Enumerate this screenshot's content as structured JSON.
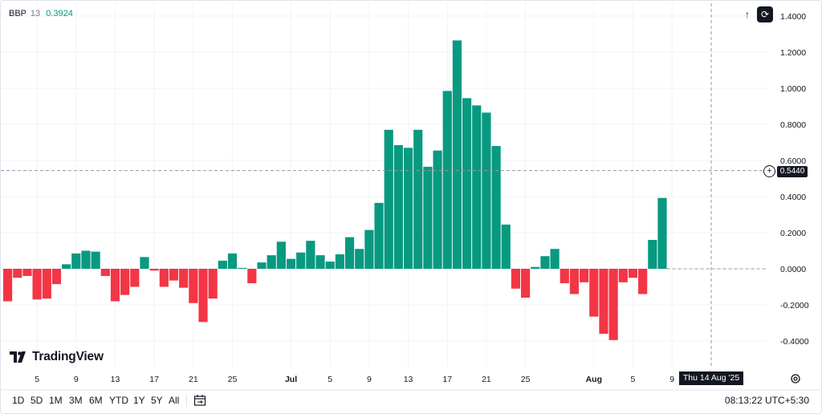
{
  "indicator": {
    "name": "BBP",
    "length": "13",
    "value": "0.3924"
  },
  "toolbar": {
    "arrow_label": "↑",
    "reset_label": "⟳"
  },
  "logo": {
    "text": "TradingView"
  },
  "crosshair": {
    "date_label": "Thu 14 Aug '25",
    "price_label": "0.5440"
  },
  "ranges": [
    "1D",
    "5D",
    "1M",
    "3M",
    "6M",
    "YTD",
    "1Y",
    "5Y",
    "All"
  ],
  "clock": "08:13:22 UTC+5:30",
  "colors": {
    "positive": "#089981",
    "negative": "#f23645",
    "grid": "#f0f3fa",
    "text": "#131722"
  },
  "chart_data": {
    "type": "bar",
    "title": "",
    "xlabel": "",
    "ylabel": "",
    "ylim": [
      -0.5,
      1.4
    ],
    "y_ticks": [
      "1.4000",
      "1.2000",
      "1.0000",
      "0.8000",
      "0.6000",
      "0.4000",
      "0.2000",
      "0.0000",
      "-0.2000",
      "-0.4000"
    ],
    "y_tick_values": [
      1.4,
      1.2,
      1.0,
      0.8,
      0.6,
      0.4,
      0.2,
      0.0,
      -0.2,
      -0.4
    ],
    "x_ticks": [
      "5",
      "9",
      "13",
      "17",
      "21",
      "25",
      "Jul",
      "5",
      "9",
      "13",
      "17",
      "21",
      "25",
      "Aug",
      "5",
      "9"
    ],
    "x_tick_bar_index": [
      3,
      7,
      11,
      15,
      19,
      23,
      29,
      33,
      37,
      41,
      45,
      49,
      53,
      60,
      64,
      68
    ],
    "values": [
      -0.18,
      -0.05,
      -0.04,
      -0.17,
      -0.165,
      -0.085,
      0.025,
      0.085,
      0.1,
      0.095,
      -0.04,
      -0.18,
      -0.145,
      -0.1,
      0.065,
      -0.01,
      -0.1,
      -0.065,
      -0.105,
      -0.19,
      -0.295,
      -0.165,
      0.045,
      0.085,
      0.005,
      -0.08,
      0.035,
      0.075,
      0.15,
      0.055,
      0.09,
      0.155,
      0.075,
      0.04,
      0.08,
      0.175,
      0.11,
      0.215,
      0.365,
      0.77,
      0.685,
      0.67,
      0.77,
      0.565,
      0.655,
      0.985,
      1.265,
      0.945,
      0.905,
      0.865,
      0.68,
      0.245,
      -0.11,
      -0.16,
      0.01,
      0.07,
      0.11,
      -0.08,
      -0.14,
      -0.075,
      -0.265,
      -0.36,
      -0.395,
      -0.075,
      -0.05,
      -0.14,
      0.16,
      0.3924
    ],
    "crosshair_value": 0.544,
    "grid": true
  }
}
